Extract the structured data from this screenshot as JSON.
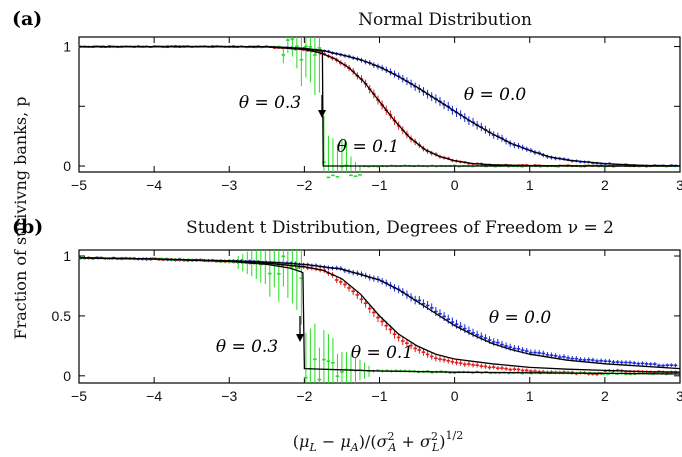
{
  "ylabel": "Fraction of surivivng banks, p",
  "xlabel": "(μL − μA)/(σ²A + σ²L)^1/2",
  "colors": {
    "theta_0_0": "#1b2bd9",
    "theta_0_1": "#e01b1b",
    "theta_0_3": "#22dd22",
    "theory": "#000000"
  },
  "chart_data": [
    {
      "type": "line",
      "panel": "(a)",
      "title": "Normal Distribution",
      "xlim": [
        -5,
        3
      ],
      "ylim": [
        -0.05,
        1.08
      ],
      "xticks": [
        -5,
        -4,
        -3,
        -2,
        -1,
        0,
        1,
        2,
        3
      ],
      "yticks": [
        0,
        0.5,
        1
      ],
      "ytick_labels": [
        "0",
        "",
        "1"
      ],
      "annotations": [
        "θ = 0.0",
        "θ = 0.1",
        "θ = 0.3"
      ],
      "series": [
        {
          "name": "θ = 0.0",
          "x": [
            -5,
            -4,
            -3,
            -2.5,
            -2,
            -1.75,
            -1.5,
            -1.25,
            -1,
            -0.75,
            -0.5,
            -0.25,
            0,
            0.25,
            0.5,
            0.75,
            1,
            1.25,
            1.5,
            2,
            2.5,
            3
          ],
          "y": [
            1,
            1,
            1,
            0.998,
            0.985,
            0.965,
            0.93,
            0.89,
            0.83,
            0.75,
            0.66,
            0.56,
            0.46,
            0.36,
            0.27,
            0.19,
            0.13,
            0.08,
            0.05,
            0.02,
            0.005,
            0.001
          ]
        },
        {
          "name": "θ = 0.1",
          "x": [
            -5,
            -3,
            -2.5,
            -2,
            -1.8,
            -1.6,
            -1.4,
            -1.2,
            -1,
            -0.8,
            -0.6,
            -0.4,
            -0.2,
            0,
            0.25,
            0.5,
            1,
            2,
            3
          ],
          "y": [
            1,
            1,
            0.997,
            0.975,
            0.95,
            0.9,
            0.82,
            0.7,
            0.54,
            0.38,
            0.24,
            0.14,
            0.08,
            0.045,
            0.02,
            0.01,
            0.003,
            0,
            0
          ]
        },
        {
          "name": "θ = 0.3",
          "x": [
            -5,
            -3,
            -2.4,
            -2.2,
            -2,
            -1.9,
            -1.85,
            -1.8,
            -1.76,
            -1.75,
            -1.7,
            -1.6,
            -1,
            0,
            1,
            2,
            3
          ],
          "y": [
            1,
            1,
            0.997,
            0.99,
            0.98,
            0.975,
            0.97,
            0.965,
            0.96,
            0.0,
            0.0,
            0,
            0,
            0,
            0,
            0,
            0
          ]
        }
      ]
    },
    {
      "type": "line",
      "panel": "(b)",
      "title": "Student t Distribution, Degrees of Freedom ν = 2",
      "xlim": [
        -5,
        3
      ],
      "ylim": [
        -0.06,
        1.05
      ],
      "xticks": [
        -5,
        -4,
        -3,
        -2,
        -1,
        0,
        1,
        2,
        3
      ],
      "yticks": [
        0,
        0.5,
        1
      ],
      "ytick_labels": [
        "0",
        "0.5",
        "1"
      ],
      "annotations": [
        "θ = 0.0",
        "θ = 0.1",
        "θ = 0.3"
      ],
      "series": [
        {
          "name": "θ = 0.0",
          "x": [
            -5,
            -4,
            -3,
            -2.5,
            -2,
            -1.5,
            -1,
            -0.75,
            -0.5,
            -0.25,
            0,
            0.25,
            0.5,
            0.75,
            1,
            1.5,
            2,
            2.5,
            3
          ],
          "y": [
            0.985,
            0.975,
            0.96,
            0.95,
            0.93,
            0.89,
            0.8,
            0.72,
            0.62,
            0.52,
            0.42,
            0.34,
            0.27,
            0.22,
            0.18,
            0.13,
            0.1,
            0.08,
            0.06
          ]
        },
        {
          "name": "θ = 0.1",
          "x": [
            -5,
            -4,
            -3,
            -2.5,
            -2,
            -1.75,
            -1.5,
            -1.25,
            -1,
            -0.75,
            -0.5,
            -0.25,
            0,
            0.5,
            1,
            1.5,
            2,
            2.5,
            3
          ],
          "y": [
            0.985,
            0.975,
            0.955,
            0.94,
            0.91,
            0.88,
            0.81,
            0.68,
            0.5,
            0.35,
            0.25,
            0.18,
            0.14,
            0.1,
            0.07,
            0.055,
            0.045,
            0.035,
            0.03
          ]
        },
        {
          "name": "θ = 0.3",
          "x": [
            -5,
            -4,
            -3,
            -2.5,
            -2.2,
            -2.05,
            -2.02,
            -2,
            -1.9,
            -1.5,
            -1,
            0,
            1,
            2,
            3
          ],
          "y": [
            0.985,
            0.975,
            0.955,
            0.93,
            0.9,
            0.87,
            0.86,
            0.06,
            0.058,
            0.05,
            0.04,
            0.03,
            0.025,
            0.02,
            0.015
          ]
        }
      ]
    }
  ]
}
